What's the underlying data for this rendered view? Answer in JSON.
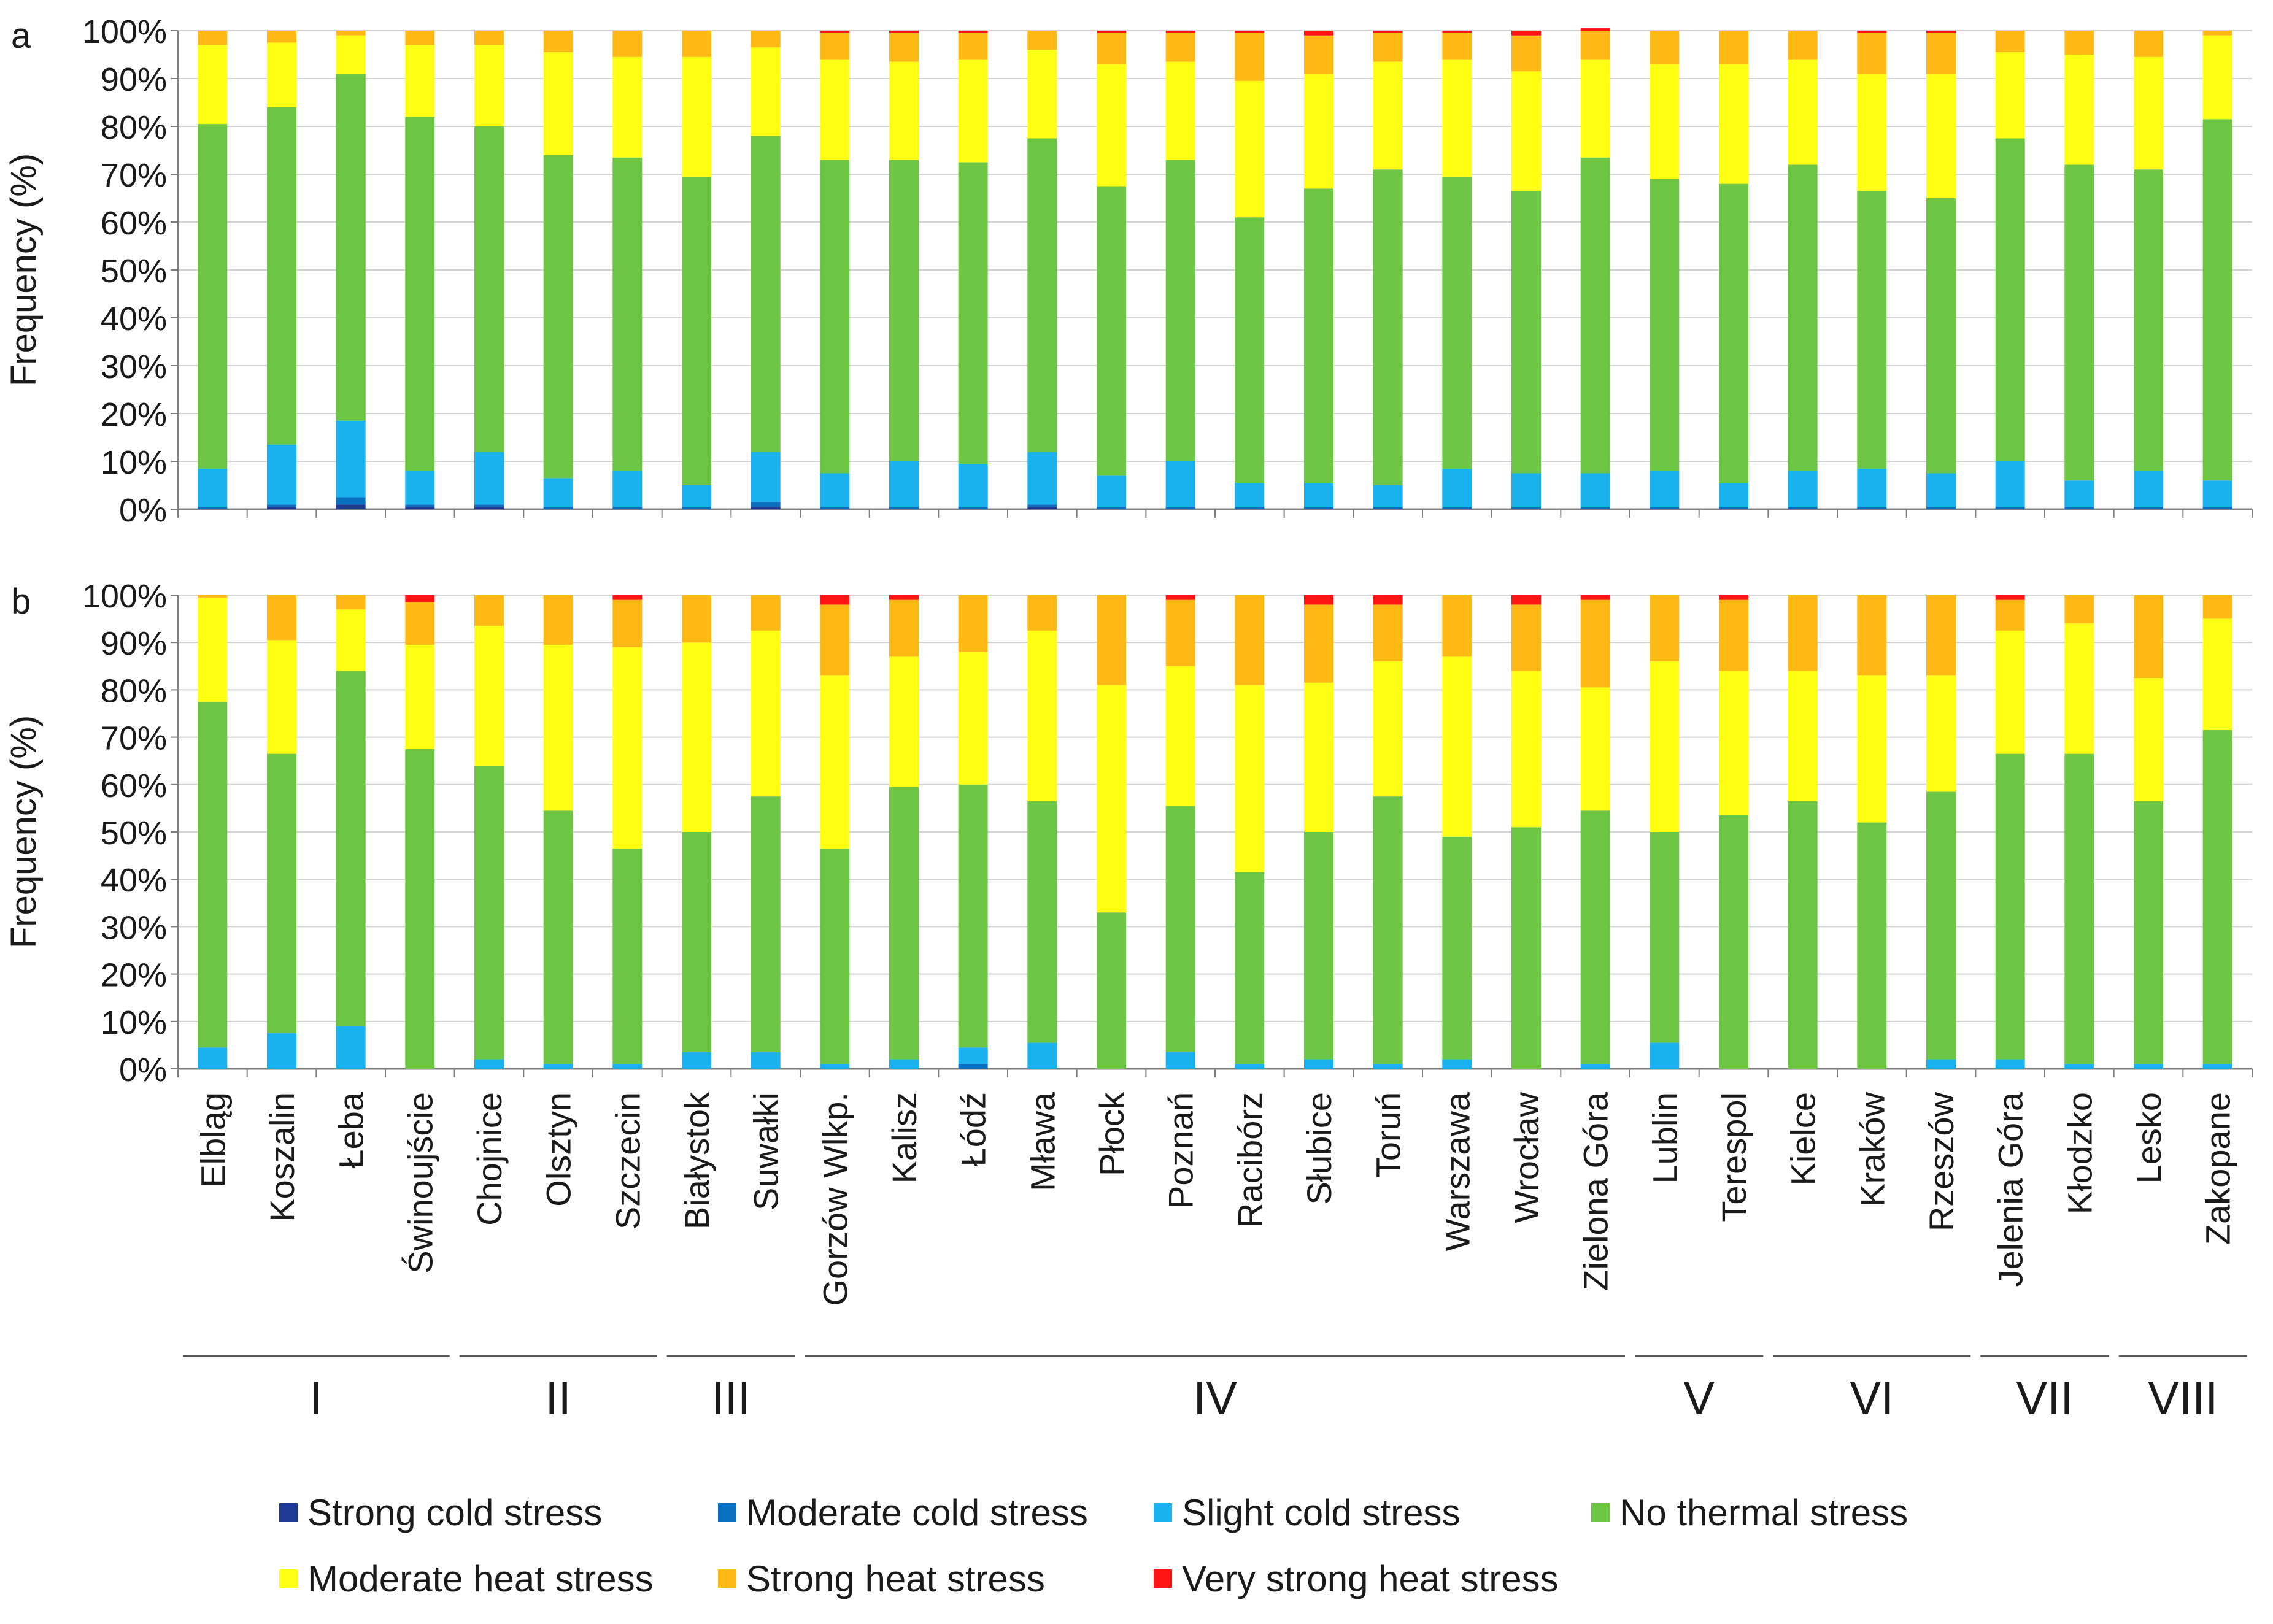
{
  "chart_data": {
    "type": "bar",
    "stacked": true,
    "percent": true,
    "ylabel": "Frequency (%)",
    "yticks": [
      "0%",
      "10%",
      "20%",
      "30%",
      "40%",
      "50%",
      "60%",
      "70%",
      "80%",
      "90%",
      "100%"
    ],
    "ylim": [
      0,
      100
    ],
    "categories": [
      "Elbląg",
      "Koszalin",
      "Łeba",
      "Świnoujście",
      "Chojnice",
      "Olsztyn",
      "Szczecin",
      "Białystok",
      "Suwałki",
      "Gorzów Wlkp.",
      "Kalisz",
      "Łódź",
      "Mława",
      "Płock",
      "Poznań",
      "Racibórz",
      "Słubice",
      "Toruń",
      "Warszawa",
      "Wrocław",
      "Zielona Góra",
      "Lublin",
      "Terespol",
      "Kielce",
      "Kraków",
      "Rzeszów",
      "Jelenia Góra",
      "Kłodzko",
      "Lesko",
      "Zakopane"
    ],
    "regions": [
      {
        "label": "I",
        "start": 0,
        "end": 3
      },
      {
        "label": "II",
        "start": 4,
        "end": 6
      },
      {
        "label": "III",
        "start": 7,
        "end": 8
      },
      {
        "label": "IV",
        "start": 9,
        "end": 20
      },
      {
        "label": "V",
        "start": 21,
        "end": 22
      },
      {
        "label": "VI",
        "start": 23,
        "end": 25
      },
      {
        "label": "VII",
        "start": 26,
        "end": 27
      },
      {
        "label": "VIII",
        "start": 28,
        "end": 29
      }
    ],
    "legend": [
      {
        "name": "Strong cold stress",
        "color": "#1f3a93"
      },
      {
        "name": "Moderate cold stress",
        "color": "#0b6fbf"
      },
      {
        "name": "Slight cold stress",
        "color": "#1ab2ee"
      },
      {
        "name": "No thermal stress",
        "color": "#6cc644"
      },
      {
        "name": "Moderate heat stress",
        "color": "#ffff14"
      },
      {
        "name": "Strong heat stress",
        "color": "#ffb914"
      },
      {
        "name": "Very strong heat stress",
        "color": "#ff1414"
      }
    ],
    "panels": [
      {
        "label": "a",
        "stacks": [
          [
            0.0,
            0.5,
            8.0,
            72.0,
            16.5,
            3.0,
            0.0
          ],
          [
            0.5,
            0.5,
            12.5,
            70.5,
            13.5,
            2.5,
            0.0
          ],
          [
            1.0,
            1.5,
            16.0,
            72.5,
            8.0,
            1.0,
            0.0
          ],
          [
            0.5,
            0.5,
            7.0,
            74.0,
            15.0,
            3.0,
            0.0
          ],
          [
            0.5,
            0.5,
            11.0,
            68.0,
            17.0,
            3.0,
            0.0
          ],
          [
            0.0,
            0.5,
            6.0,
            67.5,
            21.5,
            4.5,
            0.0
          ],
          [
            0.0,
            0.5,
            7.5,
            65.5,
            21.0,
            5.5,
            0.0
          ],
          [
            0.0,
            0.5,
            4.5,
            64.5,
            25.0,
            5.5,
            0.0
          ],
          [
            0.5,
            1.0,
            10.5,
            66.0,
            18.5,
            3.5,
            0.0
          ],
          [
            0.0,
            0.5,
            7.0,
            65.5,
            21.0,
            5.5,
            0.5
          ],
          [
            0.0,
            0.5,
            9.5,
            63.0,
            20.5,
            6.0,
            0.5
          ],
          [
            0.0,
            0.5,
            9.0,
            63.0,
            21.5,
            5.5,
            0.5
          ],
          [
            0.5,
            0.5,
            11.0,
            65.5,
            18.5,
            4.0,
            0.0
          ],
          [
            0.0,
            0.5,
            6.5,
            60.5,
            25.5,
            6.5,
            0.5
          ],
          [
            0.0,
            0.5,
            9.5,
            63.0,
            20.5,
            6.0,
            0.5
          ],
          [
            0.0,
            0.5,
            5.0,
            55.5,
            28.5,
            10.0,
            0.5
          ],
          [
            0.0,
            0.5,
            5.0,
            61.5,
            24.0,
            8.0,
            1.0
          ],
          [
            0.0,
            0.5,
            4.5,
            66.0,
            22.5,
            6.0,
            0.5
          ],
          [
            0.0,
            0.5,
            8.0,
            61.0,
            24.5,
            5.5,
            0.5
          ],
          [
            0.0,
            0.5,
            7.0,
            59.0,
            25.0,
            7.5,
            1.0
          ],
          [
            0.0,
            0.5,
            7.0,
            66.0,
            20.5,
            6.0,
            0.5
          ],
          [
            0.0,
            0.5,
            7.5,
            61.0,
            24.0,
            7.0,
            0.0
          ],
          [
            0.0,
            0.5,
            5.0,
            62.5,
            25.0,
            7.0,
            0.0
          ],
          [
            0.0,
            0.5,
            7.5,
            64.0,
            22.0,
            6.0,
            0.0
          ],
          [
            0.0,
            0.5,
            8.0,
            58.0,
            24.5,
            8.5,
            0.5
          ],
          [
            0.0,
            0.5,
            7.0,
            57.5,
            26.0,
            8.5,
            0.5
          ],
          [
            0.0,
            0.5,
            9.5,
            67.5,
            18.0,
            4.5,
            0.0
          ],
          [
            0.0,
            0.5,
            5.5,
            66.0,
            23.0,
            5.0,
            0.0
          ],
          [
            0.0,
            0.5,
            7.5,
            63.0,
            23.5,
            5.5,
            0.0
          ],
          [
            0.0,
            0.5,
            5.5,
            75.5,
            17.5,
            1.0,
            0.0
          ]
        ]
      },
      {
        "label": "b",
        "stacks": [
          [
            0.0,
            0.0,
            4.5,
            73.0,
            22.0,
            0.5,
            0.0
          ],
          [
            0.0,
            0.0,
            7.5,
            59.0,
            24.0,
            9.5,
            0.0
          ],
          [
            0.0,
            0.0,
            9.0,
            75.0,
            13.0,
            3.0,
            0.0
          ],
          [
            0.0,
            0.0,
            0.0,
            67.5,
            22.0,
            9.0,
            1.5
          ],
          [
            0.0,
            0.0,
            2.0,
            62.0,
            29.5,
            6.5,
            0.0
          ],
          [
            0.0,
            0.0,
            1.0,
            53.5,
            35.0,
            10.5,
            0.0
          ],
          [
            0.0,
            0.0,
            1.0,
            45.5,
            42.5,
            10.0,
            1.0
          ],
          [
            0.0,
            0.0,
            3.5,
            46.5,
            40.0,
            10.0,
            0.0
          ],
          [
            0.0,
            0.0,
            3.5,
            54.0,
            35.0,
            7.5,
            0.0
          ],
          [
            0.0,
            0.0,
            1.0,
            45.5,
            36.5,
            15.0,
            2.0
          ],
          [
            0.0,
            0.0,
            2.0,
            57.5,
            27.5,
            12.0,
            1.0
          ],
          [
            0.0,
            1.0,
            3.5,
            55.5,
            28.0,
            12.0,
            0.0
          ],
          [
            0.0,
            0.0,
            5.5,
            51.0,
            36.0,
            7.5,
            0.0
          ],
          [
            0.0,
            0.0,
            0.0,
            33.0,
            48.0,
            19.0,
            0.0
          ],
          [
            0.0,
            0.0,
            3.5,
            52.0,
            29.5,
            14.0,
            1.0
          ],
          [
            0.0,
            0.0,
            1.0,
            40.5,
            39.5,
            19.0,
            0.0
          ],
          [
            0.0,
            0.0,
            2.0,
            48.0,
            31.5,
            16.5,
            2.0
          ],
          [
            0.0,
            0.0,
            1.0,
            56.5,
            28.5,
            12.0,
            2.0
          ],
          [
            0.0,
            0.0,
            2.0,
            47.0,
            38.0,
            13.0,
            0.0
          ],
          [
            0.0,
            0.0,
            0.0,
            51.0,
            33.0,
            14.0,
            2.0
          ],
          [
            0.0,
            0.0,
            1.0,
            53.5,
            26.0,
            18.5,
            1.0
          ],
          [
            0.0,
            0.0,
            5.5,
            44.5,
            36.0,
            14.0,
            0.0
          ],
          [
            0.0,
            0.0,
            0.0,
            53.5,
            30.5,
            15.0,
            1.0
          ],
          [
            0.0,
            0.0,
            0.0,
            56.5,
            27.5,
            16.0,
            0.0
          ],
          [
            0.0,
            0.0,
            0.0,
            52.0,
            31.0,
            17.0,
            0.0
          ],
          [
            0.0,
            0.0,
            2.0,
            56.5,
            24.5,
            17.0,
            0.0
          ],
          [
            0.0,
            0.0,
            2.0,
            64.5,
            26.0,
            6.5,
            1.0
          ],
          [
            0.0,
            0.0,
            1.0,
            65.5,
            27.5,
            6.0,
            0.0
          ],
          [
            0.0,
            0.0,
            1.0,
            55.5,
            26.0,
            17.5,
            0.0
          ],
          [
            0.0,
            0.0,
            1.0,
            70.5,
            23.5,
            5.0,
            0.0
          ]
        ]
      }
    ]
  }
}
